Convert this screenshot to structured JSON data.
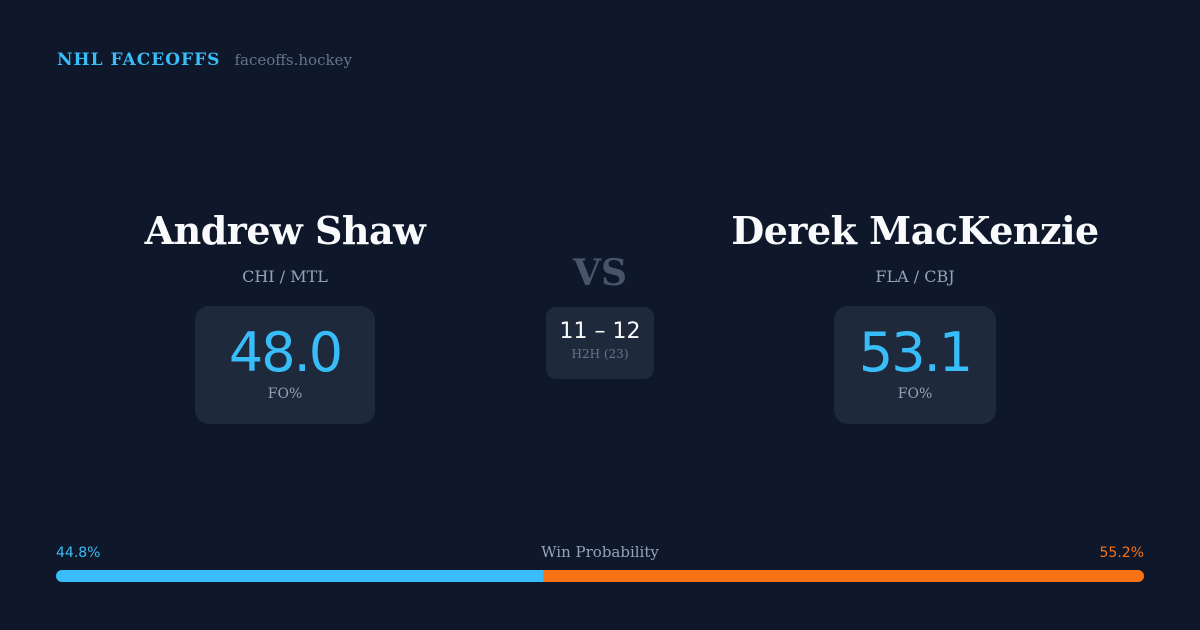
{
  "brand": {
    "name": "NHL FACEOFFS",
    "url": "faceoffs.hockey"
  },
  "players": [
    {
      "name": "Andrew Shaw",
      "teams": "CHI / MTL",
      "fo_pct": "48.0",
      "fo_label": "FO%"
    },
    {
      "name": "Derek MacKenzie",
      "teams": "FLA / CBJ",
      "fo_pct": "53.1",
      "fo_label": "FO%"
    }
  ],
  "vs": "VS",
  "h2h": {
    "score": "11 – 12",
    "label": "H2H (23)"
  },
  "win_probability": {
    "label": "Win Probability",
    "left": "44.8%",
    "right": "55.2%",
    "left_value": 44.8,
    "right_value": 55.2,
    "colors": {
      "left": "#38bdf8",
      "right": "#f97316"
    }
  }
}
